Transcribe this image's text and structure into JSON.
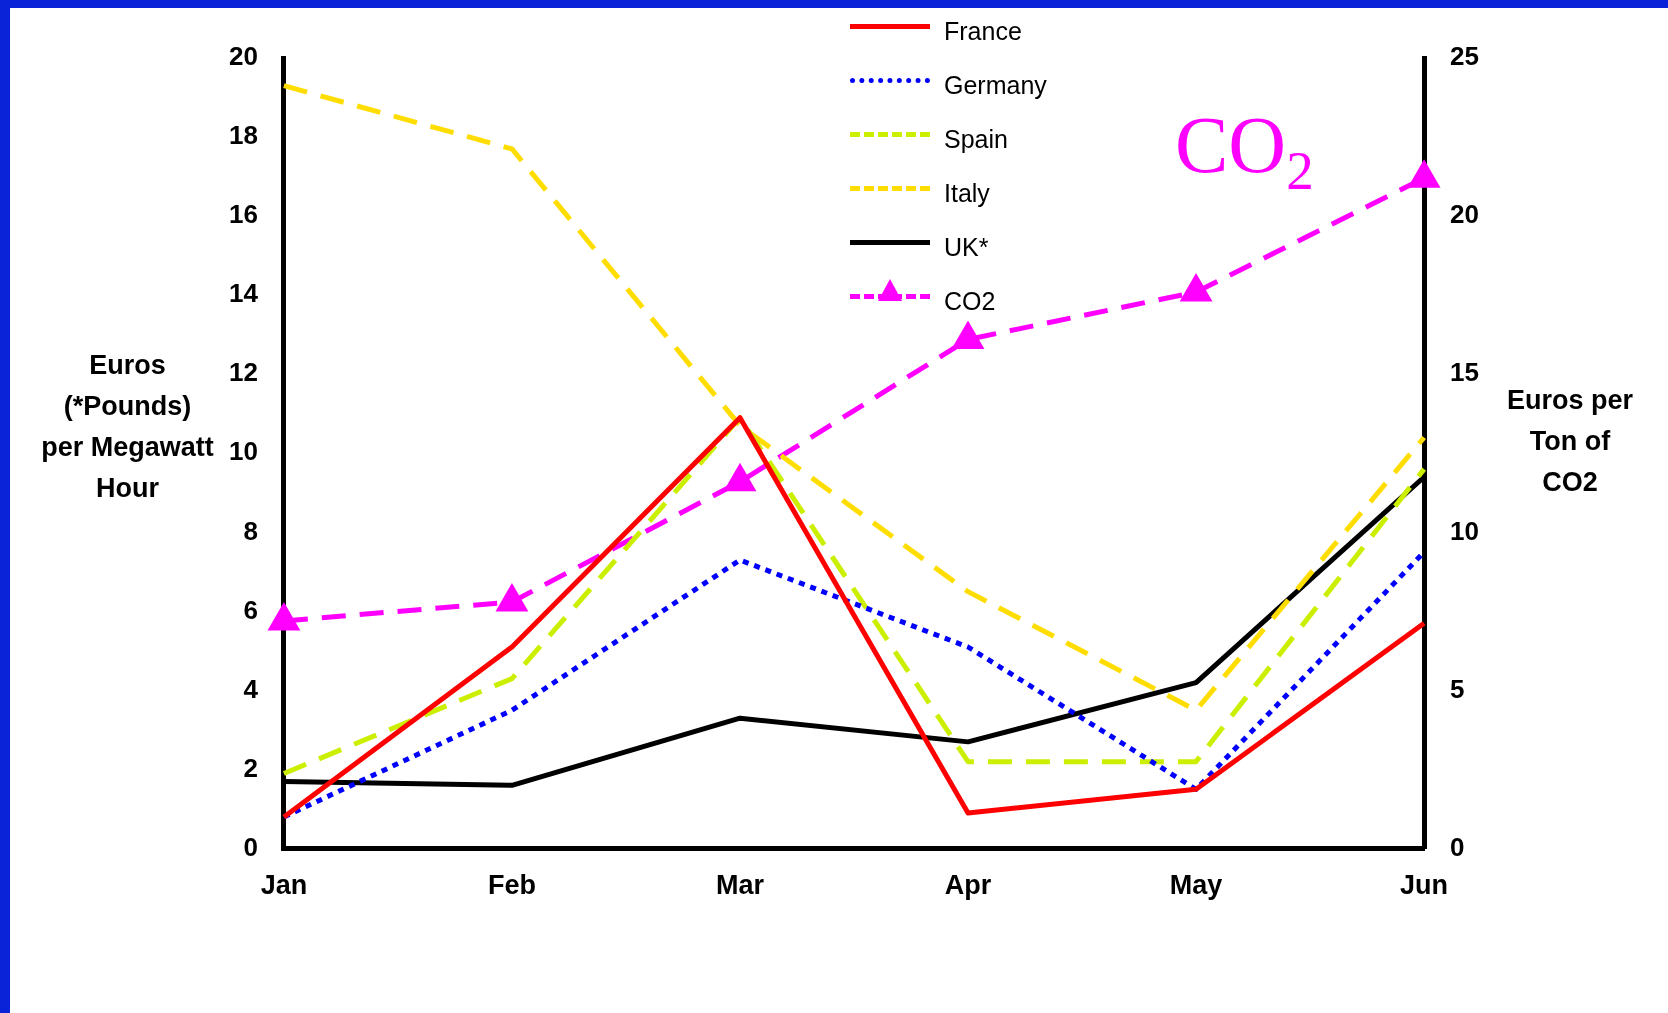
{
  "chart_data": {
    "type": "line",
    "categories": [
      "Jan",
      "Feb",
      "Mar",
      "Apr",
      "May",
      "Jun"
    ],
    "ylabel": "Euros (*Pounds) per Megawatt Hour",
    "y2label": "Euros per Ton of CO2",
    "ylim": [
      0,
      20
    ],
    "yticks": [
      0,
      2,
      4,
      6,
      8,
      10,
      12,
      14,
      16,
      18,
      20
    ],
    "y2lim": [
      0,
      25
    ],
    "y2ticks": [
      0,
      5,
      10,
      15,
      20,
      25
    ],
    "grid": false,
    "legend": "top",
    "annotations": [
      "CO$_{2}$"
    ],
    "series": [
      {
        "name": "France",
        "color": "#ff0000",
        "line_style": "solid",
        "marker": "none",
        "values": [
          0.8,
          5.1,
          10.9,
          0.9,
          1.5,
          5.7
        ]
      },
      {
        "name": "Germany",
        "color": "#0000ff",
        "line_style": "dotted",
        "marker": "none",
        "values": [
          0.8,
          3.5,
          7.3,
          5.1,
          1.5,
          7.5
        ]
      },
      {
        "name": "Spain",
        "color": "#ccee00",
        "line_style": "dashed",
        "marker": "none",
        "values": [
          1.9,
          4.3,
          10.9,
          2.2,
          2.2,
          9.6
        ]
      },
      {
        "name": "Italy",
        "color": "#ffdd00",
        "line_style": "dashed",
        "marker": "none",
        "values": [
          19.3,
          17.7,
          10.7,
          6.5,
          3.5,
          10.4
        ]
      },
      {
        "name": "UK*",
        "color": "#000000",
        "line_style": "solid",
        "marker": "none",
        "values": [
          1.7,
          1.6,
          3.3,
          2.7,
          4.2,
          9.4
        ]
      },
      {
        "name": "CO2",
        "color": "#ff00ff",
        "line_style": "dashed",
        "marker": "triangle",
        "axis": "y2",
        "values": [
          7.2,
          7.8,
          11.6,
          16.1,
          17.6,
          21.2
        ]
      }
    ]
  }
}
